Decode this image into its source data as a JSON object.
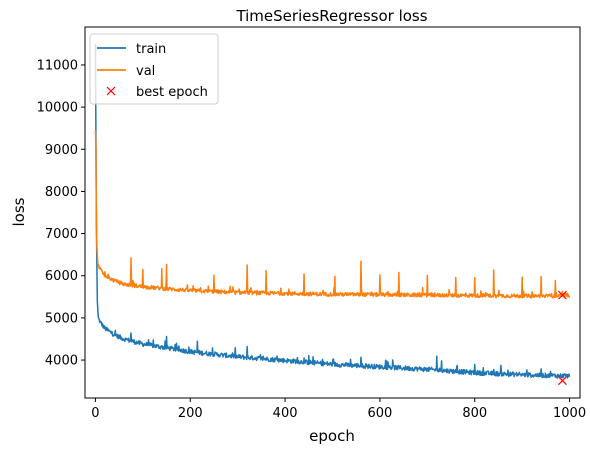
{
  "chart_data": {
    "type": "line",
    "title": "TimeSeriesRegressor loss",
    "xlabel": "epoch",
    "ylabel": "loss",
    "xlim": [
      -22,
      1022
    ],
    "ylim": [
      3100,
      11900
    ],
    "xticks": [
      0,
      200,
      400,
      600,
      800,
      1000
    ],
    "yticks": [
      4000,
      5000,
      6000,
      7000,
      8000,
      9000,
      10000,
      11000
    ],
    "grid": false,
    "legend_position": "top-left",
    "series": [
      {
        "name": "train",
        "color": "#1f77b4",
        "anchors": [
          [
            0,
            11500
          ],
          [
            2,
            7200
          ],
          [
            4,
            5400
          ],
          [
            6,
            5000
          ],
          [
            10,
            4900
          ],
          [
            20,
            4750
          ],
          [
            40,
            4600
          ],
          [
            60,
            4500
          ],
          [
            100,
            4380
          ],
          [
            150,
            4290
          ],
          [
            200,
            4200
          ],
          [
            300,
            4080
          ],
          [
            400,
            3990
          ],
          [
            500,
            3900
          ],
          [
            600,
            3840
          ],
          [
            700,
            3780
          ],
          [
            800,
            3700
          ],
          [
            900,
            3650
          ],
          [
            1000,
            3620
          ]
        ],
        "noise": 55,
        "spikes": [
          [
            75,
            200
          ],
          [
            150,
            250
          ],
          [
            215,
            230
          ],
          [
            320,
            220
          ],
          [
            450,
            180
          ],
          [
            560,
            200
          ],
          [
            720,
            350
          ],
          [
            730,
            280
          ],
          [
            800,
            170
          ],
          [
            960,
            150
          ]
        ]
      },
      {
        "name": "val",
        "color": "#ff7f0e",
        "anchors": [
          [
            0,
            9450
          ],
          [
            1,
            9000
          ],
          [
            2,
            7600
          ],
          [
            3,
            6700
          ],
          [
            5,
            6300
          ],
          [
            10,
            6150
          ],
          [
            20,
            6000
          ],
          [
            40,
            5880
          ],
          [
            60,
            5800
          ],
          [
            100,
            5740
          ],
          [
            150,
            5690
          ],
          [
            200,
            5650
          ],
          [
            300,
            5600
          ],
          [
            400,
            5580
          ],
          [
            500,
            5560
          ],
          [
            600,
            5550
          ],
          [
            700,
            5540
          ],
          [
            800,
            5530
          ],
          [
            900,
            5520
          ],
          [
            1000,
            5520
          ]
        ],
        "noise": 45,
        "spikes": [
          [
            75,
            680
          ],
          [
            100,
            450
          ],
          [
            140,
            500
          ],
          [
            150,
            550
          ],
          [
            250,
            400
          ],
          [
            320,
            700
          ],
          [
            360,
            500
          ],
          [
            440,
            500
          ],
          [
            505,
            400
          ],
          [
            560,
            800
          ],
          [
            600,
            450
          ],
          [
            640,
            550
          ],
          [
            700,
            500
          ],
          [
            760,
            450
          ],
          [
            800,
            400
          ],
          [
            840,
            600
          ],
          [
            900,
            400
          ],
          [
            940,
            450
          ],
          [
            970,
            400
          ]
        ]
      }
    ],
    "markers": [
      {
        "name": "best epoch",
        "marker": "x",
        "color": "#ff0000",
        "points": [
          [
            985,
            5540
          ],
          [
            985,
            3510
          ]
        ]
      }
    ]
  }
}
